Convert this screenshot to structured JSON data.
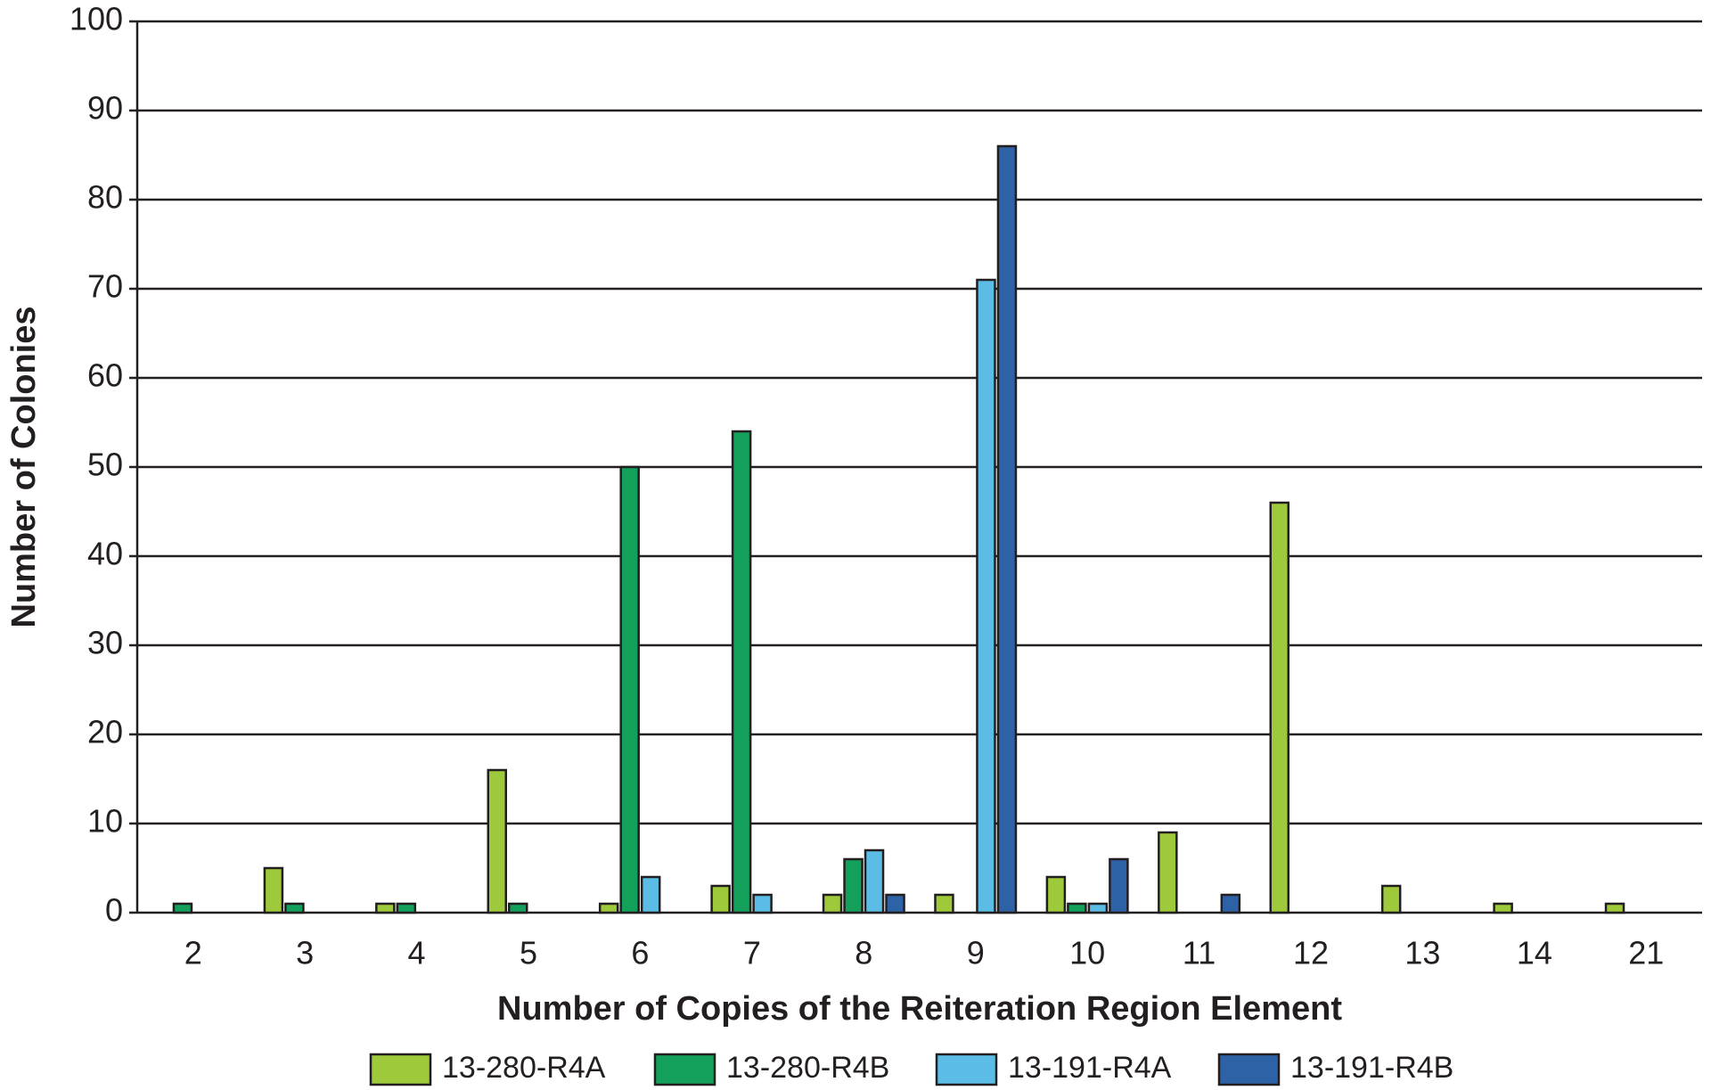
{
  "chart_data": {
    "type": "bar",
    "xlabel": "Number of Copies of the Reiteration Region Element",
    "ylabel": "Number of Colonies",
    "categories": [
      "2",
      "3",
      "4",
      "5",
      "6",
      "7",
      "8",
      "9",
      "10",
      "11",
      "12",
      "13",
      "14",
      "21"
    ],
    "series": [
      {
        "name": "13-280-R4A",
        "color": "#9dc93b",
        "values": [
          0,
          5,
          1,
          16,
          1,
          3,
          2,
          2,
          4,
          9,
          46,
          3,
          1,
          1
        ]
      },
      {
        "name": "13-280-R4B",
        "color": "#13a05a",
        "values": [
          1,
          1,
          1,
          1,
          50,
          54,
          6,
          0,
          1,
          0,
          0,
          0,
          0,
          0
        ]
      },
      {
        "name": "13-191-R4A",
        "color": "#5bbde6",
        "values": [
          0,
          0,
          0,
          0,
          4,
          2,
          7,
          71,
          1,
          0,
          0,
          0,
          0,
          0
        ]
      },
      {
        "name": "13-191-R4B",
        "color": "#2e62a6",
        "values": [
          0,
          0,
          0,
          0,
          0,
          0,
          2,
          86,
          6,
          2,
          0,
          0,
          0,
          0
        ]
      }
    ],
    "ylim": [
      0,
      100
    ],
    "yticks": [
      0,
      10,
      20,
      30,
      40,
      50,
      60,
      70,
      80,
      90,
      100
    ],
    "grid": true
  }
}
